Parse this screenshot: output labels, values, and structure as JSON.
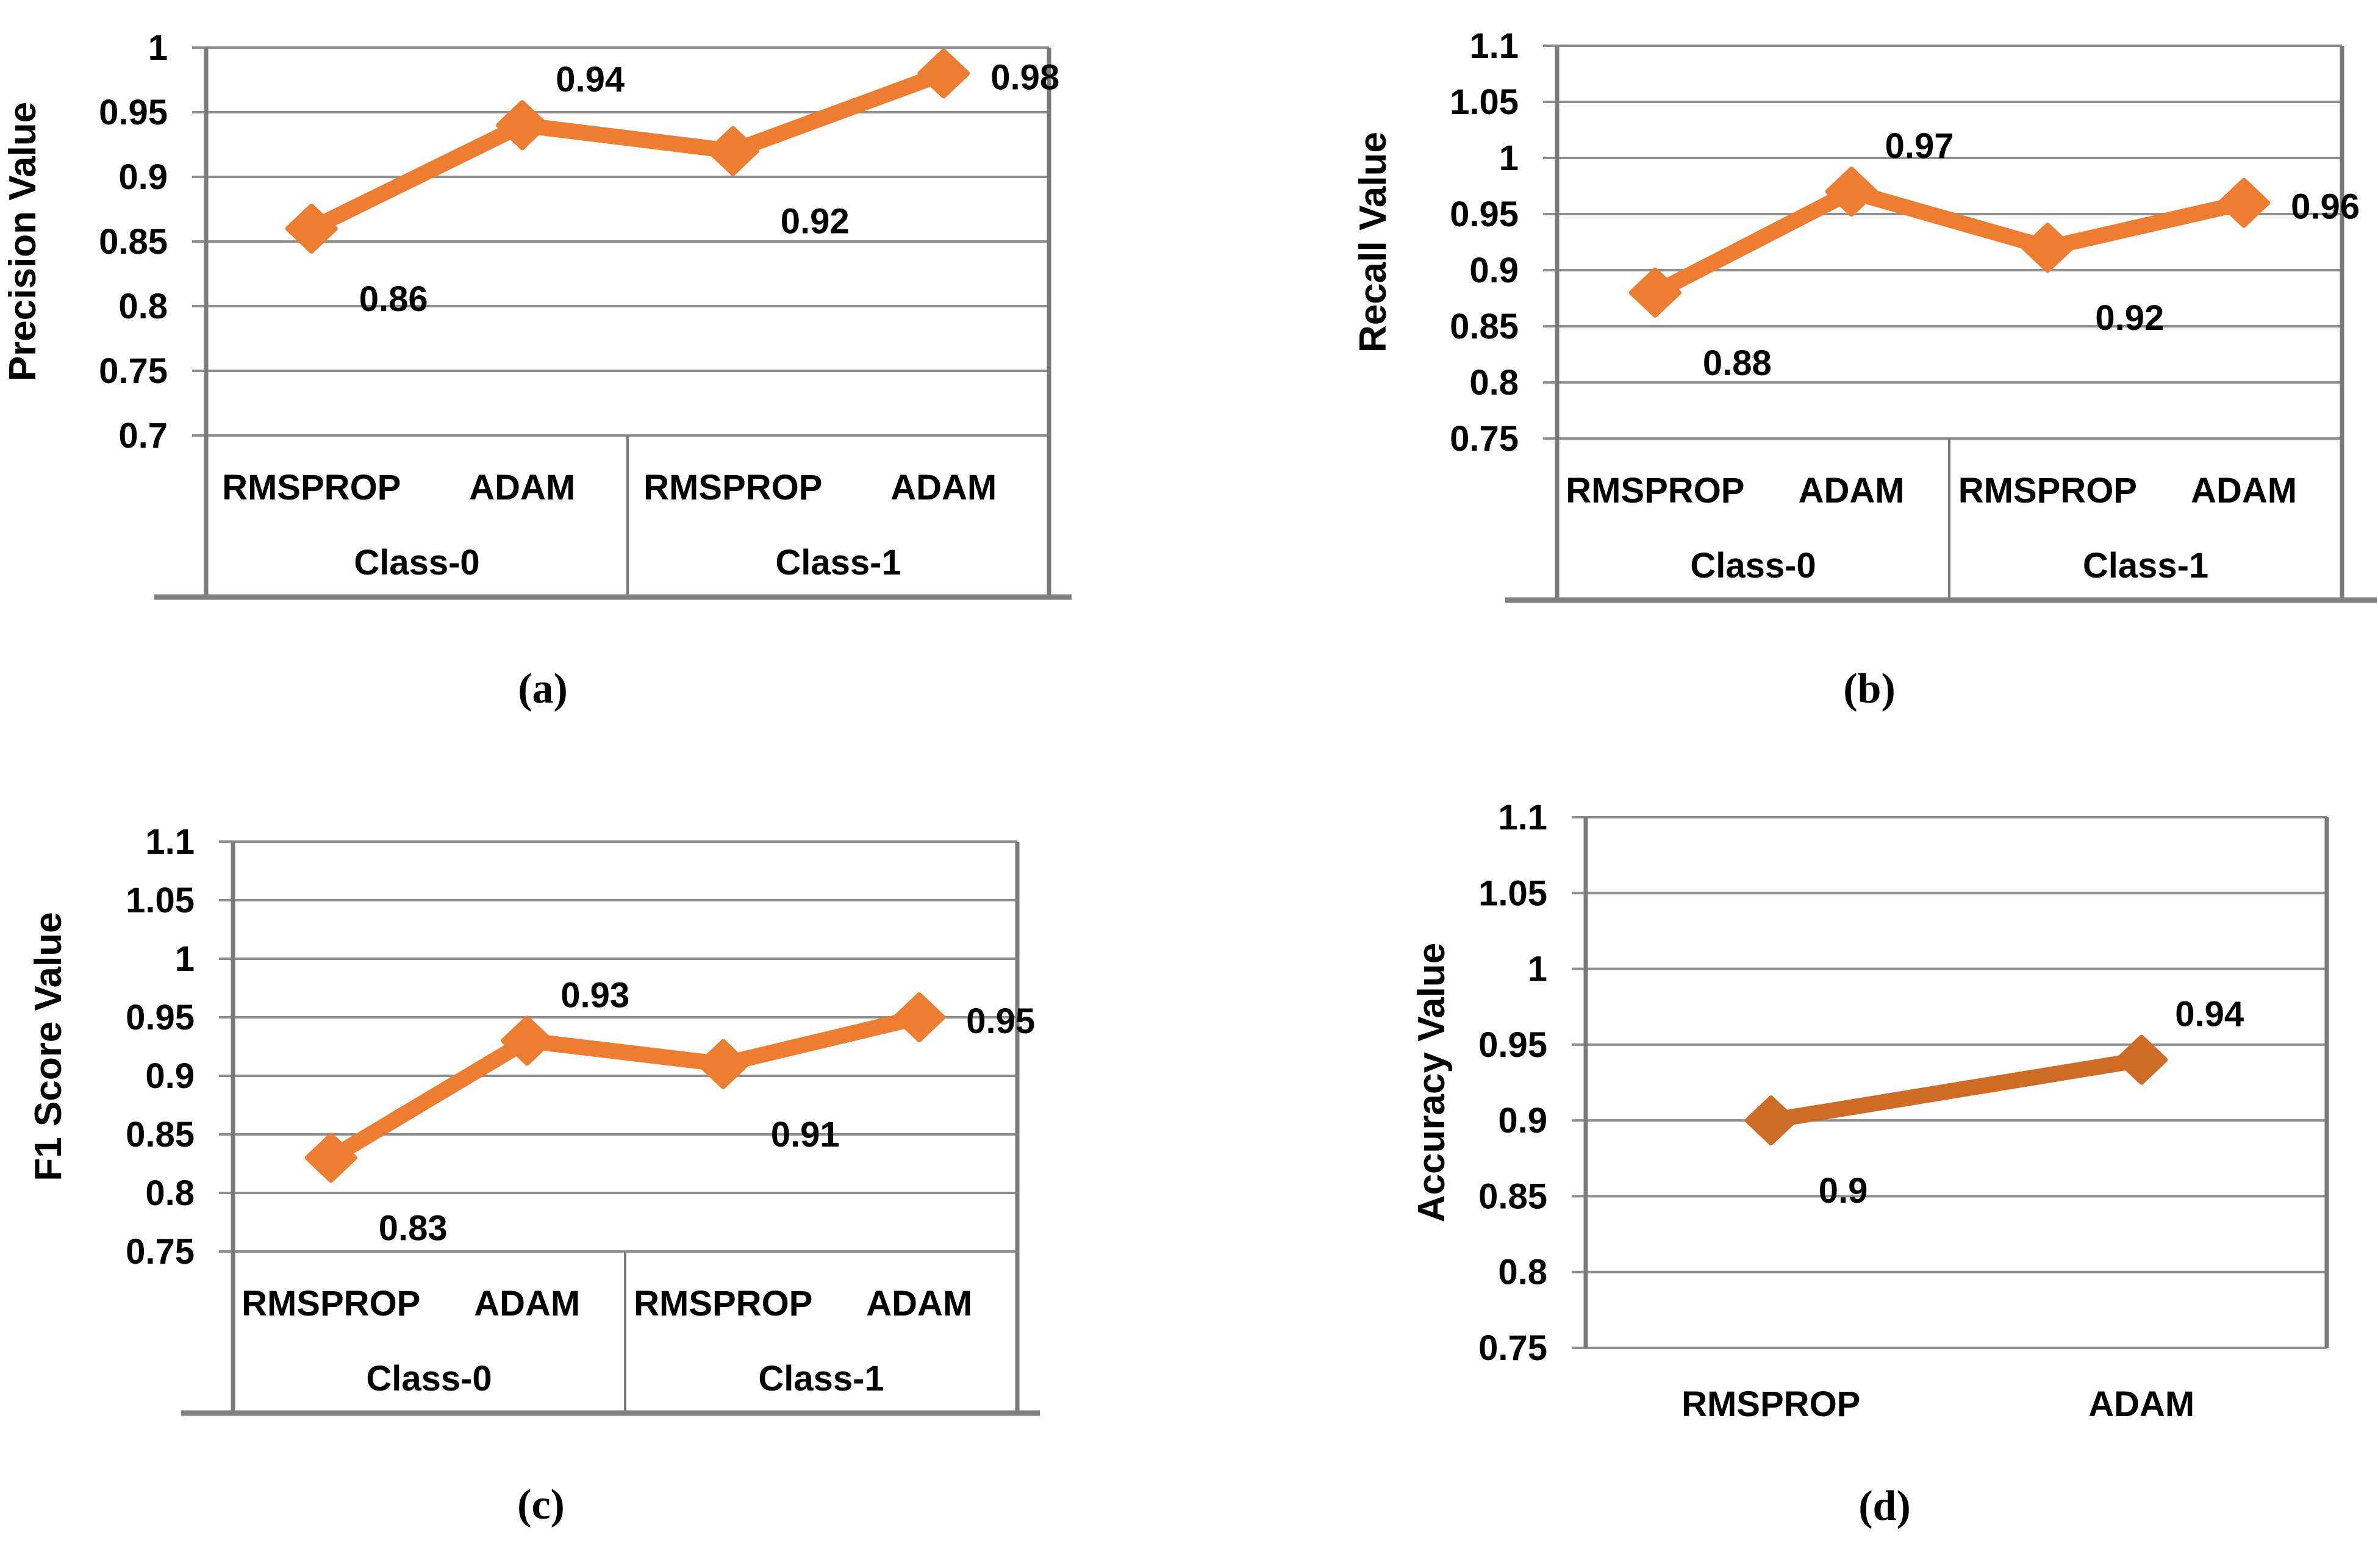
{
  "figure": {
    "background": "#ffffff",
    "description": "Four line charts comparing optimizer metrics"
  },
  "colors": {
    "series_orange": "#ED7D31",
    "series_dark_orange": "#CE6C26",
    "gridline": "#8F8F8F",
    "plot_border": "#7A7A7A",
    "base_line": "#7F7F7F",
    "text": "#000000"
  },
  "chart_data": [
    {
      "id": "a",
      "type": "line",
      "caption": "(a)",
      "ylabel": "Precision Value",
      "xlabel": "",
      "ylim": [
        0.7,
        1.0
      ],
      "grid": true,
      "legend": "none",
      "yticks": [
        "1",
        "0.95",
        "0.9",
        "0.85",
        "0.8",
        "0.75",
        "0.7"
      ],
      "categories": [
        "RMSPROP",
        "ADAM",
        "RMSPROP",
        "ADAM"
      ],
      "groups": [
        "Class-0",
        "Class-1"
      ],
      "values": [
        0.86,
        0.94,
        0.92,
        0.98
      ],
      "point_labels": [
        "0.86",
        "0.94",
        "0.92",
        "0.98"
      ],
      "line_color": "#ED7D31"
    },
    {
      "id": "b",
      "type": "line",
      "caption": "(b)",
      "ylabel": "Recall Value",
      "xlabel": "",
      "ylim": [
        0.75,
        1.1
      ],
      "grid": true,
      "legend": "none",
      "yticks": [
        "1.1",
        "1.05",
        "1",
        "0.95",
        "0.9",
        "0.85",
        "0.8",
        "0.75"
      ],
      "categories": [
        "RMSPROP",
        "ADAM",
        "RMSPROP",
        "ADAM"
      ],
      "groups": [
        "Class-0",
        "Class-1"
      ],
      "values": [
        0.88,
        0.97,
        0.92,
        0.96
      ],
      "point_labels": [
        "0.88",
        "0.97",
        "0.92",
        "0.96"
      ],
      "line_color": "#ED7D31"
    },
    {
      "id": "c",
      "type": "line",
      "caption": "(c)",
      "ylabel": "F1 Score Value",
      "xlabel": "",
      "ylim": [
        0.75,
        1.1
      ],
      "grid": true,
      "legend": "none",
      "yticks": [
        "1.1",
        "1.05",
        "1",
        "0.95",
        "0.9",
        "0.85",
        "0.8",
        "0.75"
      ],
      "categories": [
        "RMSPROP",
        "ADAM",
        "RMSPROP",
        "ADAM"
      ],
      "groups": [
        "Class-0",
        "Class-1"
      ],
      "values": [
        0.83,
        0.93,
        0.91,
        0.95
      ],
      "point_labels": [
        "0.83",
        "0.93",
        "0.91",
        "0.95"
      ],
      "line_color": "#ED7D31"
    },
    {
      "id": "d",
      "type": "line",
      "caption": "(d)",
      "ylabel": "Accuracy Value",
      "xlabel": "",
      "ylim": [
        0.75,
        1.1
      ],
      "grid": true,
      "legend": "none",
      "yticks": [
        "1.1",
        "1.05",
        "1",
        "0.95",
        "0.9",
        "0.85",
        "0.8",
        "0.75"
      ],
      "categories": [
        "RMSPROP",
        "ADAM"
      ],
      "groups": null,
      "values": [
        0.9,
        0.94
      ],
      "point_labels": [
        "0.9",
        "0.94"
      ],
      "line_color": "#CE6C26"
    }
  ]
}
